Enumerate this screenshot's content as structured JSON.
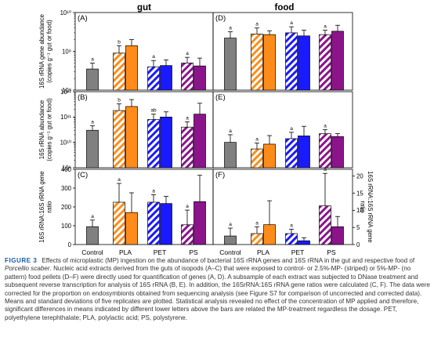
{
  "chart_data": {
    "type": "bar",
    "columns": [
      {
        "key": "gut",
        "title": "gut"
      },
      {
        "key": "food",
        "title": "food"
      }
    ],
    "categories": [
      "Control",
      "PLA",
      "PET",
      "PS"
    ],
    "colors": {
      "control": "#808080",
      "PLA": "#ff8c1a",
      "PET": "#1a1aff",
      "PS": "#8b148b"
    },
    "legend_items": [
      "2.5%-MP- (striped)",
      "5%-MP- (no pattern)"
    ],
    "rows": [
      {
        "ylabel": "16S rRNA gene abundance\n(copies g⁻¹ gut or food)",
        "scale": "log",
        "ylim": [
          100000000.0,
          10000000000.0
        ],
        "ticks": [
          {
            "v": 100000000.0,
            "t": "10⁸"
          },
          {
            "v": 1000000000.0,
            "t": "10⁹"
          },
          {
            "v": 10000000000.0,
            "t": "10¹⁰"
          }
        ],
        "panels": [
          {
            "letter": "(A)",
            "bars": [
              {
                "v": 350000000.0,
                "e": 150000000.0,
                "lab": "a"
              },
              {
                "v": 900000000.0,
                "e": 500000000.0,
                "lab": "b"
              },
              {
                "v": 1400000000.0,
                "e": 600000000.0,
                "lab": ""
              },
              {
                "v": 400000000.0,
                "e": 180000000.0,
                "lab": "a"
              },
              {
                "v": 430000000.0,
                "e": 170000000.0,
                "lab": ""
              },
              {
                "v": 500000000.0,
                "e": 200000000.0,
                "lab": "a"
              },
              {
                "v": 420000000.0,
                "e": 250000000.0,
                "lab": ""
              }
            ]
          },
          {
            "letter": "(D)",
            "bars": [
              {
                "v": 2200000000.0,
                "e": 1000000000.0,
                "lab": "a"
              },
              {
                "v": 2800000000.0,
                "e": 1200000000.0,
                "lab": "a"
              },
              {
                "v": 2700000000.0,
                "e": 700000000.0,
                "lab": ""
              },
              {
                "v": 3000000000.0,
                "e": 1300000000.0,
                "lab": "a"
              },
              {
                "v": 2500000000.0,
                "e": 1000000000.0,
                "lab": ""
              },
              {
                "v": 2700000000.0,
                "e": 800000000.0,
                "lab": "a"
              },
              {
                "v": 3300000000.0,
                "e": 1400000000.0,
                "lab": ""
              }
            ]
          }
        ]
      },
      {
        "ylabel": "16S rRNA abundance\n(copies g⁻¹ gut or food)",
        "scale": "log",
        "ylim": [
          1000000000.0,
          1000000000000.0
        ],
        "ticks": [
          {
            "v": 1000000000.0,
            "t": "10⁹"
          },
          {
            "v": 10000000000.0,
            "t": "10¹⁰"
          },
          {
            "v": 100000000000.0,
            "t": "10¹¹"
          },
          {
            "v": 1000000000000.0,
            "t": "10¹²"
          }
        ],
        "panels": [
          {
            "letter": "(B)",
            "bars": [
              {
                "v": 30000000000.0,
                "e": 15000000000.0,
                "lab": "a"
              },
              {
                "v": 180000000000.0,
                "e": 150000000000.0,
                "lab": "b"
              },
              {
                "v": 260000000000.0,
                "e": 230000000000.0,
                "lab": ""
              },
              {
                "v": 80000000000.0,
                "e": 50000000000.0,
                "lab": "ab"
              },
              {
                "v": 100000000000.0,
                "e": 60000000000.0,
                "lab": ""
              },
              {
                "v": 40000000000.0,
                "e": 25000000000.0,
                "lab": "a"
              },
              {
                "v": 130000000000.0,
                "e": 220000000000.0,
                "lab": ""
              }
            ]
          },
          {
            "letter": "(E)",
            "bars": [
              {
                "v": 10000000000.0,
                "e": 10000000000.0,
                "lab": "a"
              },
              {
                "v": 5500000000.0,
                "e": 4000000000.0,
                "lab": "a"
              },
              {
                "v": 8500000000.0,
                "e": 10000000000.0,
                "lab": ""
              },
              {
                "v": 14000000000.0,
                "e": 11000000000.0,
                "lab": "a"
              },
              {
                "v": 18000000000.0,
                "e": 25000000000.0,
                "lab": ""
              },
              {
                "v": 22000000000.0,
                "e": 10000000000.0,
                "lab": "a"
              },
              {
                "v": 17000000000.0,
                "e": 5000000000.0,
                "lab": ""
              }
            ]
          }
        ]
      },
      {
        "ylabel": "16S rRNA:16S rRNA gene\nratio",
        "ylabel_right": "16S rRNA:16S rRNA gene\nratio",
        "scale": "linear",
        "ylim": [
          0,
          400
        ],
        "ylim_right": [
          0,
          22
        ],
        "ticks": [
          {
            "v": 0,
            "t": "0"
          },
          {
            "v": 100,
            "t": "100"
          },
          {
            "v": 200,
            "t": "200"
          },
          {
            "v": 300,
            "t": "300"
          },
          {
            "v": 400,
            "t": "400"
          }
        ],
        "ticks_right": [
          {
            "v": 0,
            "t": "0"
          },
          {
            "v": 5,
            "t": "5"
          },
          {
            "v": 10,
            "t": "10"
          },
          {
            "v": 15,
            "t": "15"
          },
          {
            "v": 20,
            "t": "20"
          }
        ],
        "panels": [
          {
            "letter": "(C)",
            "axis": "left",
            "bars": [
              {
                "v": 95,
                "e": 35,
                "lab": "a"
              },
              {
                "v": 225,
                "e": 100,
                "lab": "a"
              },
              {
                "v": 170,
                "e": 105,
                "lab": ""
              },
              {
                "v": 225,
                "e": 40,
                "lab": "a"
              },
              {
                "v": 218,
                "e": 38,
                "lab": ""
              },
              {
                "v": 105,
                "e": 78,
                "lab": "a"
              },
              {
                "v": 228,
                "e": 140,
                "lab": ""
              }
            ]
          },
          {
            "letter": "(F)",
            "axis": "right",
            "bars": [
              {
                "v": 2.5,
                "e": 2.3,
                "lab": "a"
              },
              {
                "v": 3.2,
                "e": 2,
                "lab": "a"
              },
              {
                "v": 5.8,
                "e": 7,
                "lab": ""
              },
              {
                "v": 3.2,
                "e": 1.3,
                "lab": "a"
              },
              {
                "v": 1.1,
                "e": 0.9,
                "lab": ""
              },
              {
                "v": 11.3,
                "e": 9.5,
                "lab": "a"
              },
              {
                "v": 5.2,
                "e": 3,
                "lab": ""
              }
            ]
          }
        ]
      }
    ]
  },
  "caption": {
    "label": "FIGURE 3",
    "text_1": "Effects of microplastic (MP) ingestion on the abundance of bacterial 16S rRNA genes and 16S rRNA in the gut and respective food of ",
    "species": "Porcellio scaber",
    "text_2": ". Nucleic acid extracts derived from the guts of isopods (A–C) that were exposed to control- or 2.5%-MP- (striped) or 5%-MP- (no pattern) food pellets (D–F) were directly used for quantification of genes (A, D). A subsample of each extract was subjected to DNase treatment and subsequent reverse transcription for analysis of 16S rRNA (B, E). In addition, the 16SrRNA:16S rRNA gene ratios were calculated (C, F). The data were corrected for the proportion on endosymbionts obtained from sequencing analysis (see Figure S7 for comparison of uncorrected and corrected data). Means and standard deviations of five replicates are plotted. Statistical analysis revealed no effect of the concentration of MP applied and therefore, significant differences in means indicated by different lower letters above the bars are related the MP-treatment regardless the dosage. PET, polyethylene terephthalate; PLA, polylactic acid; PS, polystyrene."
  }
}
